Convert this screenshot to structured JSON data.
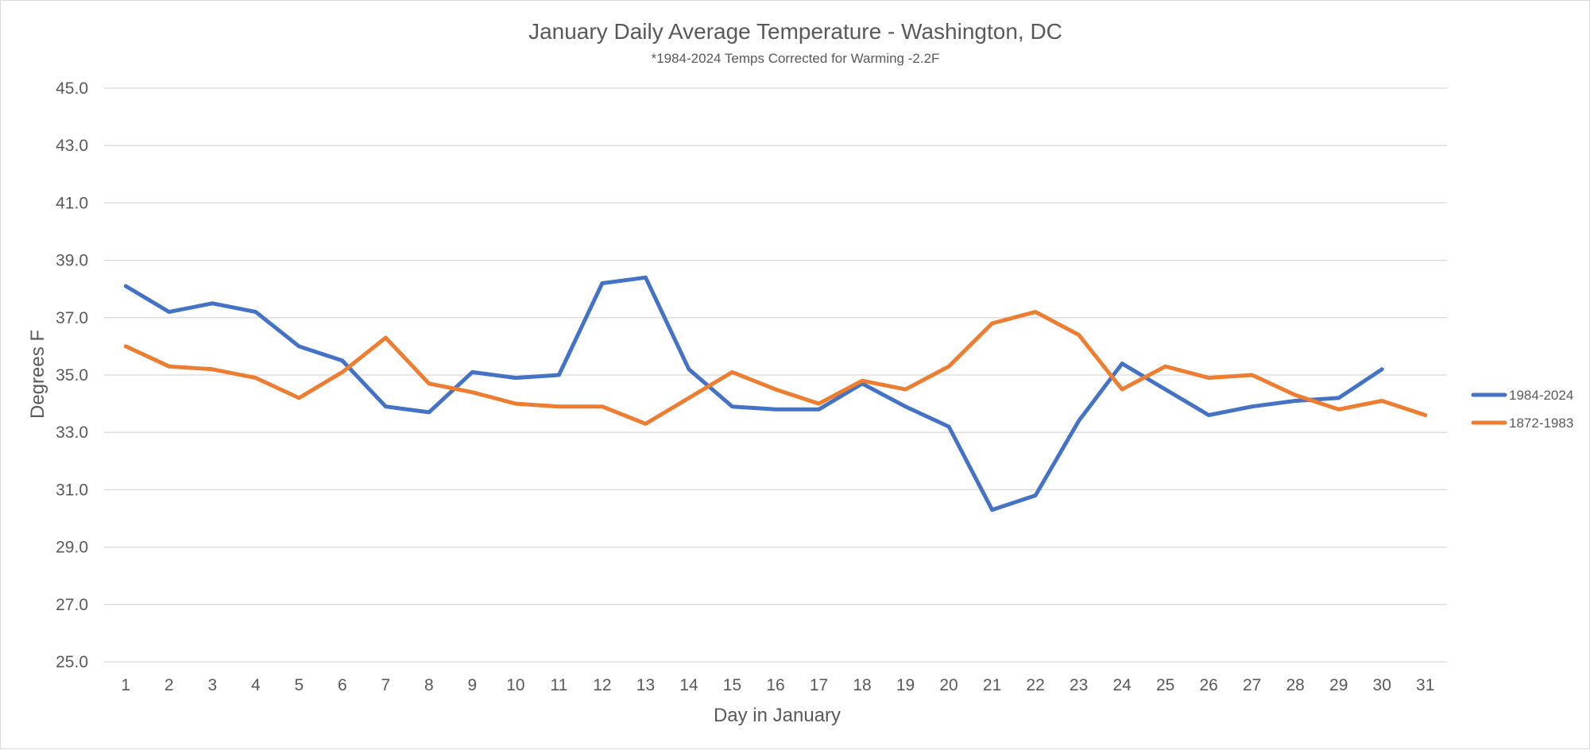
{
  "chart_data": {
    "type": "line",
    "title": "January Daily Average Temperature - Washington, DC",
    "subtitle": "*1984-2024 Temps Corrected for Warming -2.2F",
    "xlabel": "Day in January",
    "ylabel": "Degrees F",
    "ylim": [
      25,
      45
    ],
    "ytick_step": 2,
    "ytick_labels": [
      "25.0",
      "27.0",
      "29.0",
      "31.0",
      "33.0",
      "35.0",
      "37.0",
      "39.0",
      "41.0",
      "43.0",
      "45.0"
    ],
    "categories": [
      "1",
      "2",
      "3",
      "4",
      "5",
      "6",
      "7",
      "8",
      "9",
      "10",
      "11",
      "12",
      "13",
      "14",
      "15",
      "16",
      "17",
      "18",
      "19",
      "20",
      "21",
      "22",
      "23",
      "24",
      "25",
      "26",
      "27",
      "28",
      "29",
      "30",
      "31"
    ],
    "grid": true,
    "legend_position": "right",
    "series": [
      {
        "name": "1984-2024",
        "color": "#4472C4",
        "values": [
          38.1,
          37.2,
          37.5,
          37.2,
          36.0,
          35.5,
          33.9,
          33.7,
          35.1,
          34.9,
          35.0,
          38.2,
          38.4,
          35.2,
          33.9,
          33.8,
          33.8,
          34.7,
          33.9,
          33.2,
          30.3,
          30.8,
          33.4,
          35.4,
          34.5,
          33.6,
          33.9,
          34.1,
          34.2,
          35.2,
          null
        ]
      },
      {
        "name": "1872-1983",
        "color": "#ED7D31",
        "values": [
          36.0,
          35.3,
          35.2,
          34.9,
          34.2,
          35.1,
          36.3,
          34.7,
          34.4,
          34.0,
          33.9,
          33.9,
          33.3,
          34.2,
          35.1,
          34.5,
          34.0,
          34.8,
          34.5,
          35.3,
          36.8,
          37.2,
          36.4,
          34.5,
          35.3,
          34.9,
          35.0,
          34.3,
          33.8,
          34.1,
          33.6
        ]
      }
    ]
  }
}
